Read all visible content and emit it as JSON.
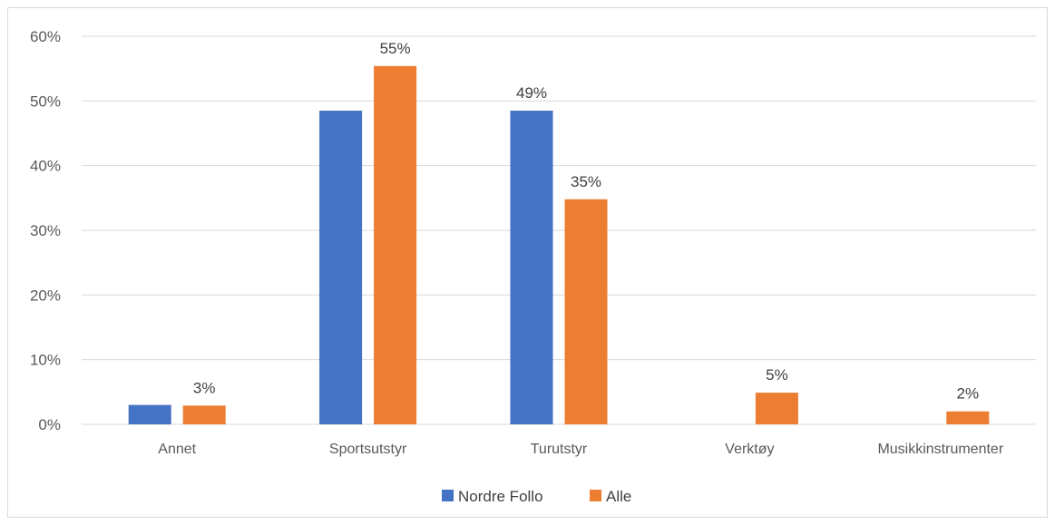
{
  "chart_data": {
    "type": "bar",
    "title": "",
    "xlabel": "",
    "ylabel": "",
    "ylim": [
      0,
      60
    ],
    "y_ticks": [
      0,
      10,
      20,
      30,
      40,
      50,
      60
    ],
    "y_tick_suffix": "%",
    "grid": true,
    "legend_position": "bottom",
    "categories": [
      "Annet",
      "Sportsutstyr",
      "Turutstyr",
      "Verktøy",
      "Musikkinstrumenter"
    ],
    "series": [
      {
        "name": "Nordre Follo",
        "color": "#4472C4",
        "values": [
          3,
          48.5,
          48.5,
          0,
          0
        ],
        "data_labels": [
          null,
          null,
          "49%",
          null,
          null
        ]
      },
      {
        "name": "Alle",
        "color": "#ED7D31",
        "values": [
          2.9,
          55.4,
          34.8,
          4.9,
          2.0
        ],
        "data_labels": [
          "3%",
          "55%",
          "35%",
          "5%",
          "2%"
        ]
      }
    ]
  }
}
